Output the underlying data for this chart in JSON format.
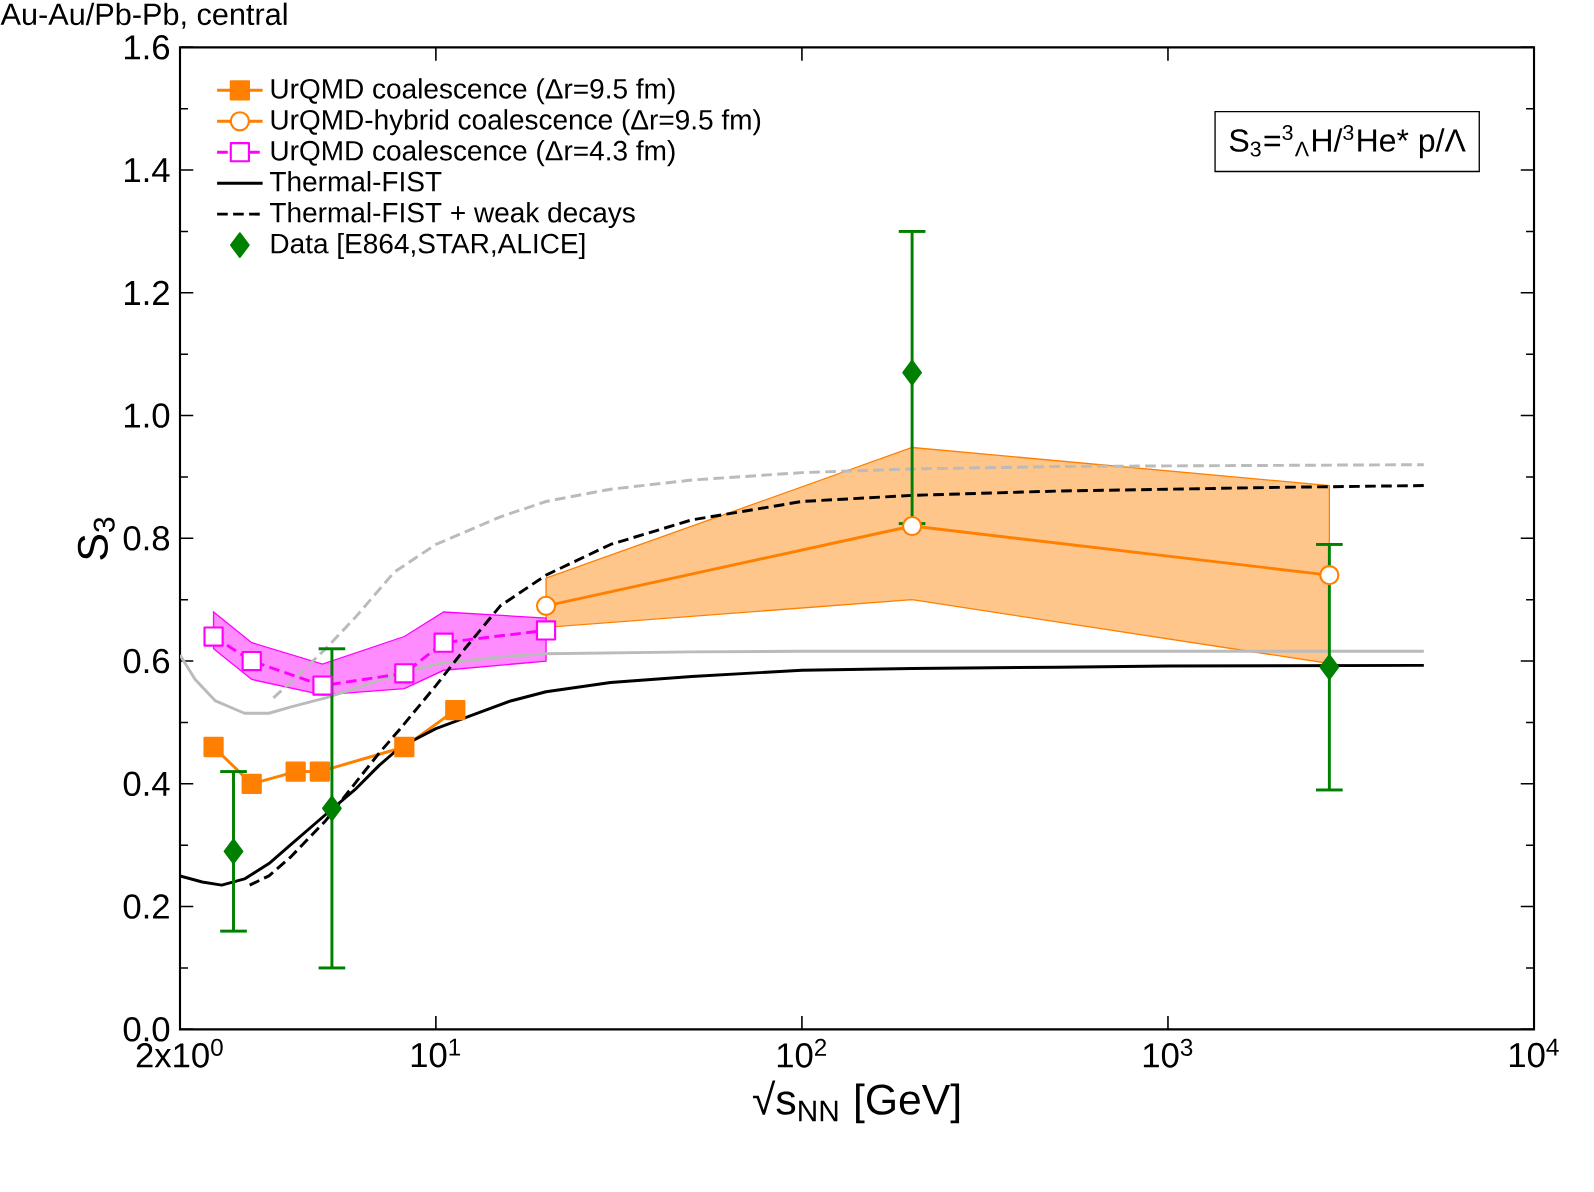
{
  "chart_data": {
    "type": "line",
    "title": "Au-Au/Pb-Pb, central",
    "xlabel": "√s$_{NN}$  [GeV]",
    "ylabel": "S$_{3}$",
    "annotations": [
      "S$_{3}$=$^{3}$$_{Λ}$H/$^{3}$He* p/Λ"
    ],
    "log": "x",
    "xlim": [
      2,
      10000
    ],
    "ylim": [
      0,
      1.6
    ],
    "xticks": [
      {
        "value": 2,
        "label": "2x10$^{0}$"
      },
      {
        "value": 10,
        "label": "10$^{1}$"
      },
      {
        "value": 100,
        "label": "10$^{2}$"
      },
      {
        "value": 1000,
        "label": "10$^{3}$"
      },
      {
        "value": 10000,
        "label": "10$^{4}$"
      }
    ],
    "yticks": [
      {
        "value": 0,
        "label": "0.0"
      },
      {
        "value": 0.2,
        "label": "0.2"
      },
      {
        "value": 0.4,
        "label": "0.4"
      },
      {
        "value": 0.6,
        "label": "0.6"
      },
      {
        "value": 0.8,
        "label": "0.8"
      },
      {
        "value": 1.0,
        "label": "1.0"
      },
      {
        "value": 1.2,
        "label": "1.2"
      },
      {
        "value": 1.4,
        "label": "1.4"
      },
      {
        "value": 1.6,
        "label": "1.6"
      }
    ],
    "grid": false,
    "legend": "top left",
    "series": [
      {
        "name": "UrQMD coalescence  (Δr=9.5 fm)",
        "color": "#ff8000",
        "marker": "square",
        "line_style": "solid",
        "x": [
          2.47,
          3.14,
          4.14,
          4.82,
          8.2,
          11.3
        ],
        "values": [
          0.46,
          0.4,
          0.42,
          0.42,
          0.46,
          0.52
        ]
      },
      {
        "name": "UrQMD-hybrid coalescence  (Δr=9.5 fm)",
        "color": "#ff8000",
        "marker": "circle",
        "line_style": "solid",
        "x": [
          20,
          200,
          2760
        ],
        "values": [
          0.69,
          0.82,
          0.74
        ],
        "lower": [
          0.655,
          0.7,
          0.596
        ],
        "upper": [
          0.735,
          0.948,
          0.886
        ]
      },
      {
        "name": "UrQMD coalescence  (Δr=4.3 fm)",
        "color": "#ff00ff",
        "marker": "square",
        "line_style": "dashed",
        "x": [
          2.47,
          3.14,
          4.9,
          8.2,
          10.5,
          20
        ],
        "values": [
          0.64,
          0.6,
          0.56,
          0.58,
          0.63,
          0.65
        ],
        "lower": [
          0.62,
          0.57,
          0.545,
          0.555,
          0.585,
          0.6
        ],
        "upper": [
          0.68,
          0.63,
          0.595,
          0.64,
          0.68,
          0.67
        ]
      },
      {
        "name": "Thermal-FIST",
        "color": "#000000",
        "marker": "none",
        "line_style": "solid",
        "x": [
          2,
          2.3,
          2.6,
          3,
          3.5,
          4,
          5,
          6,
          7,
          8,
          10,
          13,
          16,
          20,
          30,
          50,
          100,
          200,
          500,
          1000,
          5000
        ],
        "values": [
          0.25,
          0.24,
          0.235,
          0.245,
          0.27,
          0.3,
          0.35,
          0.39,
          0.43,
          0.46,
          0.49,
          0.515,
          0.535,
          0.55,
          0.565,
          0.575,
          0.585,
          0.588,
          0.59,
          0.592,
          0.593
        ]
      },
      {
        "name": "Thermal-FIST + weak decays",
        "color": "#000000",
        "marker": "none",
        "line_style": "dashed",
        "x": [
          3.1,
          3.5,
          4,
          5,
          6,
          7,
          8,
          10,
          12,
          15,
          20,
          30,
          50,
          100,
          200,
          500,
          1000,
          2000,
          5000
        ],
        "values": [
          0.235,
          0.25,
          0.28,
          0.34,
          0.4,
          0.45,
          0.49,
          0.56,
          0.62,
          0.69,
          0.74,
          0.79,
          0.83,
          0.86,
          0.87,
          0.877,
          0.88,
          0.883,
          0.886
        ]
      },
      {
        "name": "Data [E864,STAR,ALICE]",
        "type": "scatter",
        "color": "#008000",
        "marker": "diamond",
        "x": [
          2.8,
          5.2,
          200,
          2760
        ],
        "values": [
          0.29,
          0.36,
          1.07,
          0.59
        ],
        "errors": [
          [
            0.16,
            0.42
          ],
          [
            0.1,
            0.62
          ],
          [
            0.824,
            1.3
          ],
          [
            0.39,
            0.79
          ]
        ]
      },
      {
        "color": "#bbbbbb",
        "marker": "none",
        "line_style": "solid",
        "x": [
          2,
          2.2,
          2.5,
          3,
          3.5,
          4,
          5,
          6,
          8,
          10,
          15,
          20,
          50,
          100,
          1000,
          5000
        ],
        "values": [
          0.61,
          0.57,
          0.535,
          0.515,
          0.515,
          0.525,
          0.54,
          0.555,
          0.58,
          0.595,
          0.607,
          0.612,
          0.615,
          0.616,
          0.616,
          0.616
        ]
      },
      {
        "color": "#bbbbbb",
        "marker": "none",
        "line_style": "dashed",
        "x": [
          3.6,
          4,
          5,
          6,
          7.7,
          10,
          15,
          20,
          30,
          50,
          100,
          200,
          500,
          1000,
          5000
        ],
        "values": [
          0.54,
          0.565,
          0.62,
          0.67,
          0.745,
          0.79,
          0.835,
          0.86,
          0.88,
          0.895,
          0.907,
          0.913,
          0.917,
          0.918,
          0.92
        ]
      }
    ]
  }
}
